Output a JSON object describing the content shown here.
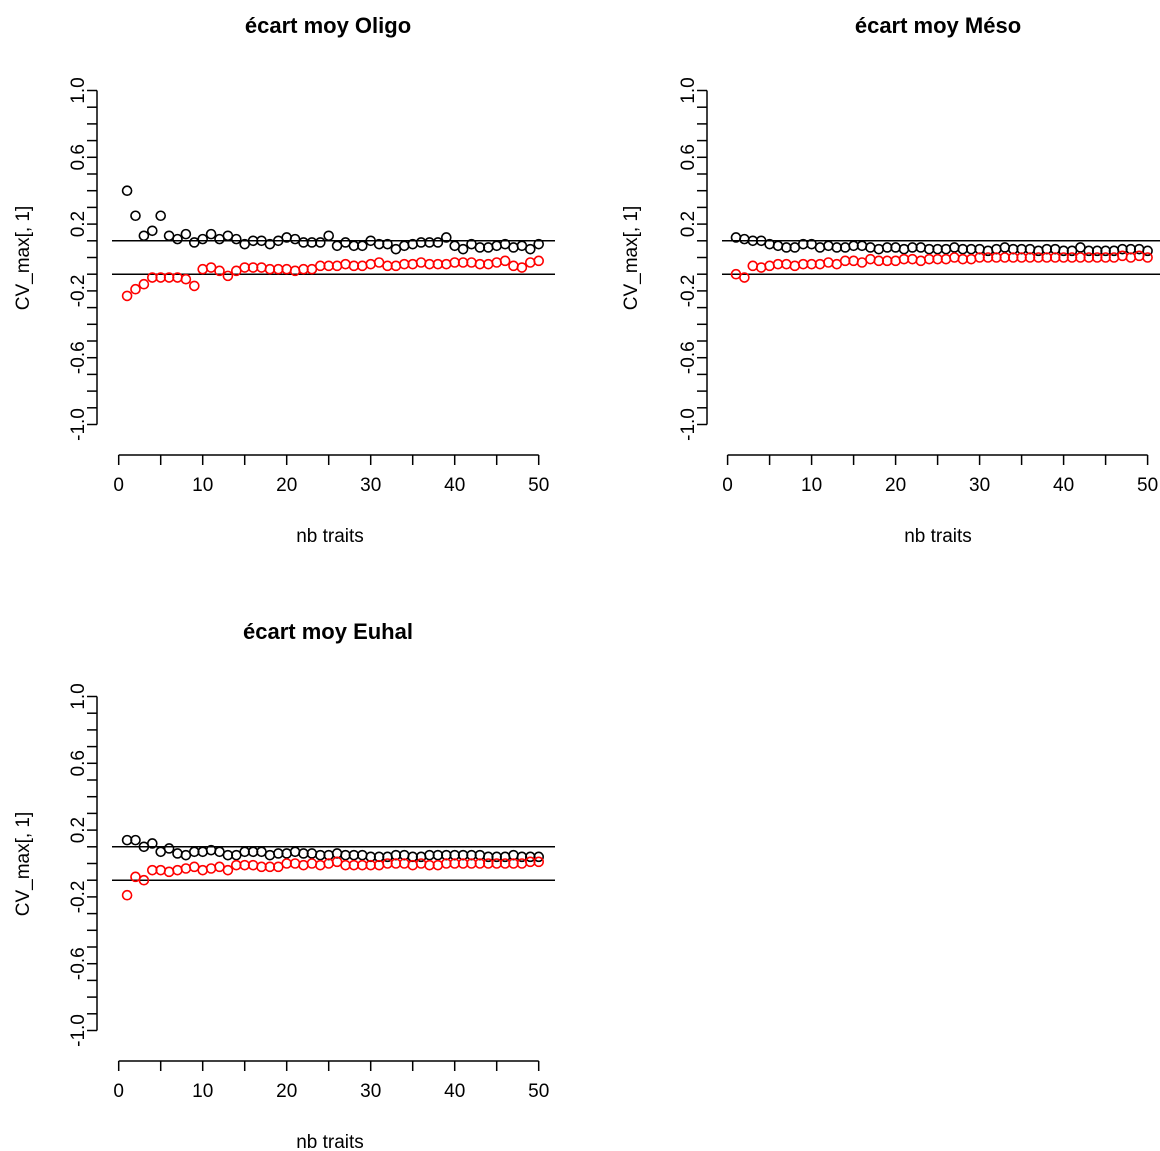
{
  "chart_data": [
    {
      "type": "scatter",
      "title": "écart moy Oligo",
      "xlabel": "nb traits",
      "ylabel": "CV_max[, 1]",
      "xlim": [
        0,
        50
      ],
      "ylim": [
        -1.0,
        1.0
      ],
      "x_ticks": [
        "0",
        "10",
        "20",
        "30",
        "40",
        "50"
      ],
      "y_ticks": [
        "-1.0",
        "-0.6",
        "-0.2",
        "0.2",
        "0.6",
        "1.0"
      ],
      "hlines": [
        0.1,
        -0.1
      ],
      "series_colors": [
        "#000000",
        "#ff0000"
      ],
      "x": [
        1,
        2,
        3,
        4,
        5,
        6,
        7,
        8,
        9,
        10,
        11,
        12,
        13,
        14,
        15,
        16,
        17,
        18,
        19,
        20,
        21,
        22,
        23,
        24,
        25,
        26,
        27,
        28,
        29,
        30,
        31,
        32,
        33,
        34,
        35,
        36,
        37,
        38,
        39,
        40,
        41,
        42,
        43,
        44,
        45,
        46,
        47,
        48,
        49,
        50
      ],
      "series": [
        {
          "values": [
            0.4,
            0.25,
            0.13,
            0.16,
            0.25,
            0.13,
            0.11,
            0.14,
            0.09,
            0.11,
            0.14,
            0.11,
            0.13,
            0.11,
            0.08,
            0.1,
            0.1,
            0.08,
            0.1,
            0.12,
            0.11,
            0.09,
            0.09,
            0.09,
            0.13,
            0.07,
            0.09,
            0.07,
            0.07,
            0.1,
            0.08,
            0.08,
            0.05,
            0.07,
            0.08,
            0.09,
            0.09,
            0.09,
            0.12,
            0.07,
            0.05,
            0.08,
            0.06,
            0.06,
            0.07,
            0.08,
            0.06,
            0.07,
            0.05,
            0.08
          ]
        },
        {
          "values": [
            -0.23,
            -0.19,
            -0.16,
            -0.12,
            -0.12,
            -0.12,
            -0.12,
            -0.13,
            -0.17,
            -0.07,
            -0.06,
            -0.08,
            -0.11,
            -0.08,
            -0.06,
            -0.06,
            -0.06,
            -0.07,
            -0.07,
            -0.07,
            -0.08,
            -0.07,
            -0.07,
            -0.05,
            -0.05,
            -0.05,
            -0.04,
            -0.05,
            -0.05,
            -0.04,
            -0.03,
            -0.05,
            -0.05,
            -0.04,
            -0.04,
            -0.03,
            -0.04,
            -0.04,
            -0.04,
            -0.03,
            -0.03,
            -0.03,
            -0.04,
            -0.04,
            -0.03,
            -0.02,
            -0.05,
            -0.06,
            -0.03,
            -0.02
          ]
        }
      ]
    },
    {
      "type": "scatter",
      "title": "écart moy Méso",
      "xlabel": "nb traits",
      "ylabel": "CV_max[, 1]",
      "xlim": [
        0,
        50
      ],
      "ylim": [
        -1.0,
        1.0
      ],
      "x_ticks": [
        "0",
        "10",
        "20",
        "30",
        "40",
        "50"
      ],
      "y_ticks": [
        "-1.0",
        "-0.6",
        "-0.2",
        "0.2",
        "0.6",
        "1.0"
      ],
      "hlines": [
        0.1,
        -0.1
      ],
      "series_colors": [
        "#000000",
        "#ff0000"
      ],
      "x": [
        1,
        2,
        3,
        4,
        5,
        6,
        7,
        8,
        9,
        10,
        11,
        12,
        13,
        14,
        15,
        16,
        17,
        18,
        19,
        20,
        21,
        22,
        23,
        24,
        25,
        26,
        27,
        28,
        29,
        30,
        31,
        32,
        33,
        34,
        35,
        36,
        37,
        38,
        39,
        40,
        41,
        42,
        43,
        44,
        45,
        46,
        47,
        48,
        49,
        50
      ],
      "series": [
        {
          "values": [
            0.12,
            0.11,
            0.1,
            0.1,
            0.08,
            0.07,
            0.06,
            0.06,
            0.08,
            0.08,
            0.06,
            0.07,
            0.06,
            0.06,
            0.07,
            0.07,
            0.06,
            0.05,
            0.06,
            0.06,
            0.05,
            0.06,
            0.06,
            0.05,
            0.05,
            0.05,
            0.06,
            0.05,
            0.05,
            0.05,
            0.04,
            0.05,
            0.06,
            0.05,
            0.05,
            0.05,
            0.04,
            0.05,
            0.05,
            0.04,
            0.04,
            0.06,
            0.04,
            0.04,
            0.04,
            0.04,
            0.05,
            0.05,
            0.05,
            0.04
          ]
        },
        {
          "values": [
            -0.1,
            -0.12,
            -0.05,
            -0.06,
            -0.05,
            -0.04,
            -0.04,
            -0.05,
            -0.04,
            -0.04,
            -0.04,
            -0.03,
            -0.04,
            -0.02,
            -0.02,
            -0.03,
            -0.01,
            -0.02,
            -0.02,
            -0.02,
            -0.01,
            -0.01,
            -0.02,
            -0.01,
            -0.01,
            -0.01,
            -0.0,
            -0.01,
            -0.01,
            -0.0,
            0.0,
            -0.0,
            -0.0,
            -0.0,
            0.0,
            -0.0,
            -0.0,
            -0.0,
            0.0,
            -0.0,
            0.0,
            0.0,
            0.0,
            0.0,
            0.0,
            0.0,
            0.01,
            0.0,
            0.01,
            0.0
          ]
        }
      ]
    },
    {
      "type": "scatter",
      "title": "écart moy Euhal",
      "xlabel": "nb traits",
      "ylabel": "CV_max[, 1]",
      "xlim": [
        0,
        50
      ],
      "ylim": [
        -1.0,
        1.0
      ],
      "x_ticks": [
        "0",
        "10",
        "20",
        "30",
        "40",
        "50"
      ],
      "y_ticks": [
        "-1.0",
        "-0.6",
        "-0.2",
        "0.2",
        "0.6",
        "1.0"
      ],
      "hlines": [
        0.1,
        -0.1
      ],
      "series_colors": [
        "#000000",
        "#ff0000"
      ],
      "x": [
        1,
        2,
        3,
        4,
        5,
        6,
        7,
        8,
        9,
        10,
        11,
        12,
        13,
        14,
        15,
        16,
        17,
        18,
        19,
        20,
        21,
        22,
        23,
        24,
        25,
        26,
        27,
        28,
        29,
        30,
        31,
        32,
        33,
        34,
        35,
        36,
        37,
        38,
        39,
        40,
        41,
        42,
        43,
        44,
        45,
        46,
        47,
        48,
        49,
        50
      ],
      "series": [
        {
          "values": [
            0.14,
            0.14,
            0.1,
            0.12,
            0.07,
            0.09,
            0.06,
            0.05,
            0.07,
            0.07,
            0.08,
            0.07,
            0.05,
            0.05,
            0.07,
            0.07,
            0.07,
            0.05,
            0.06,
            0.06,
            0.07,
            0.06,
            0.06,
            0.05,
            0.05,
            0.06,
            0.05,
            0.05,
            0.05,
            0.04,
            0.04,
            0.04,
            0.05,
            0.05,
            0.04,
            0.04,
            0.05,
            0.05,
            0.05,
            0.05,
            0.05,
            0.05,
            0.05,
            0.04,
            0.04,
            0.04,
            0.05,
            0.04,
            0.04,
            0.04
          ]
        },
        {
          "values": [
            -0.19,
            -0.08,
            -0.1,
            -0.04,
            -0.04,
            -0.05,
            -0.04,
            -0.03,
            -0.02,
            -0.04,
            -0.03,
            -0.02,
            -0.04,
            -0.01,
            -0.01,
            -0.01,
            -0.02,
            -0.02,
            -0.02,
            0.0,
            0.0,
            -0.01,
            0.0,
            -0.01,
            0.0,
            0.01,
            -0.01,
            -0.01,
            -0.01,
            -0.01,
            -0.01,
            0.0,
            0.0,
            0.0,
            -0.01,
            0.0,
            -0.01,
            -0.01,
            0.0,
            0.0,
            0.0,
            0.0,
            0.0,
            0.0,
            0.0,
            0.0,
            0.0,
            0.0,
            0.01,
            0.01
          ]
        }
      ]
    }
  ]
}
